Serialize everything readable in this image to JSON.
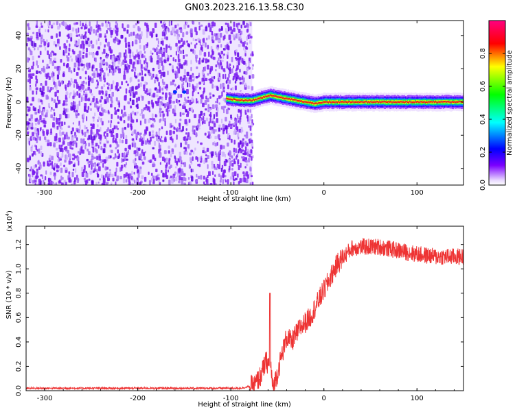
{
  "title": "GN03.2023.216.13.58.C30",
  "chart_data": [
    {
      "type": "heatmap",
      "xlabel": "Height of straight line (km)",
      "ylabel": "Frequency (Hz)",
      "xlim": [
        -320,
        150
      ],
      "ylim": [
        -50,
        49
      ],
      "xticks": [
        -300,
        -200,
        -100,
        0,
        100
      ],
      "yticks": [
        -40,
        -20,
        0,
        20,
        40
      ],
      "noise_region_x": [
        -320,
        -77
      ],
      "signal_line": {
        "x": [
          -105,
          -90,
          -77,
          -65,
          -58,
          -50,
          -40,
          -30,
          -20,
          -10,
          0,
          20,
          50,
          80,
          110,
          150
        ],
        "y": [
          2,
          1,
          1,
          3,
          4,
          3,
          2,
          1,
          0,
          -1,
          0,
          0,
          0,
          0,
          0,
          0
        ]
      },
      "colorbar": {
        "label": "Normalized spectral amplitude",
        "range": [
          0.0,
          1.0
        ],
        "ticks": [
          0.0,
          0.2,
          0.4,
          0.6,
          0.8
        ],
        "tick_labels": [
          "0.0",
          "0.2",
          "0.4",
          "0.6",
          "0.8"
        ],
        "colormap": [
          "#ffffff",
          "#7b00ff",
          "#0000ff",
          "#00ffff",
          "#00ff00",
          "#ffff00",
          "#ff0000",
          "#ff0066"
        ]
      }
    },
    {
      "type": "line",
      "xlabel": "Height of straight line (km)",
      "ylabel": "SNR (10 * v/v)",
      "multiplier": "(x10",
      "multiplier_exp": "4",
      "multiplier_close": ")",
      "xlim": [
        -320,
        150
      ],
      "ylim": [
        0,
        1.35
      ],
      "xticks": [
        -300,
        -200,
        -100,
        0,
        100
      ],
      "yticks": [
        0.0,
        0.2,
        0.4,
        0.6,
        0.8,
        1.0,
        1.2
      ],
      "ytick_labels": [
        "0.0",
        "0.2",
        "0.4",
        "0.6",
        "0.8",
        "1.0",
        "1.2"
      ],
      "color": "#ee3333",
      "envelope": {
        "x": [
          -320,
          -150,
          -90,
          -75,
          -68,
          -62,
          -57,
          -55,
          -50,
          -45,
          -40,
          -35,
          -25,
          -15,
          -5,
          5,
          15,
          25,
          30,
          40,
          60,
          80,
          100,
          120,
          150
        ],
        "y": [
          0.02,
          0.02,
          0.02,
          0.04,
          0.12,
          0.24,
          0.2,
          0.02,
          0.14,
          0.3,
          0.44,
          0.4,
          0.52,
          0.6,
          0.75,
          0.9,
          1.05,
          1.13,
          1.17,
          1.18,
          1.18,
          1.15,
          1.12,
          1.1,
          1.1
        ]
      },
      "spike": {
        "x": -58,
        "y": 0.8
      }
    }
  ]
}
